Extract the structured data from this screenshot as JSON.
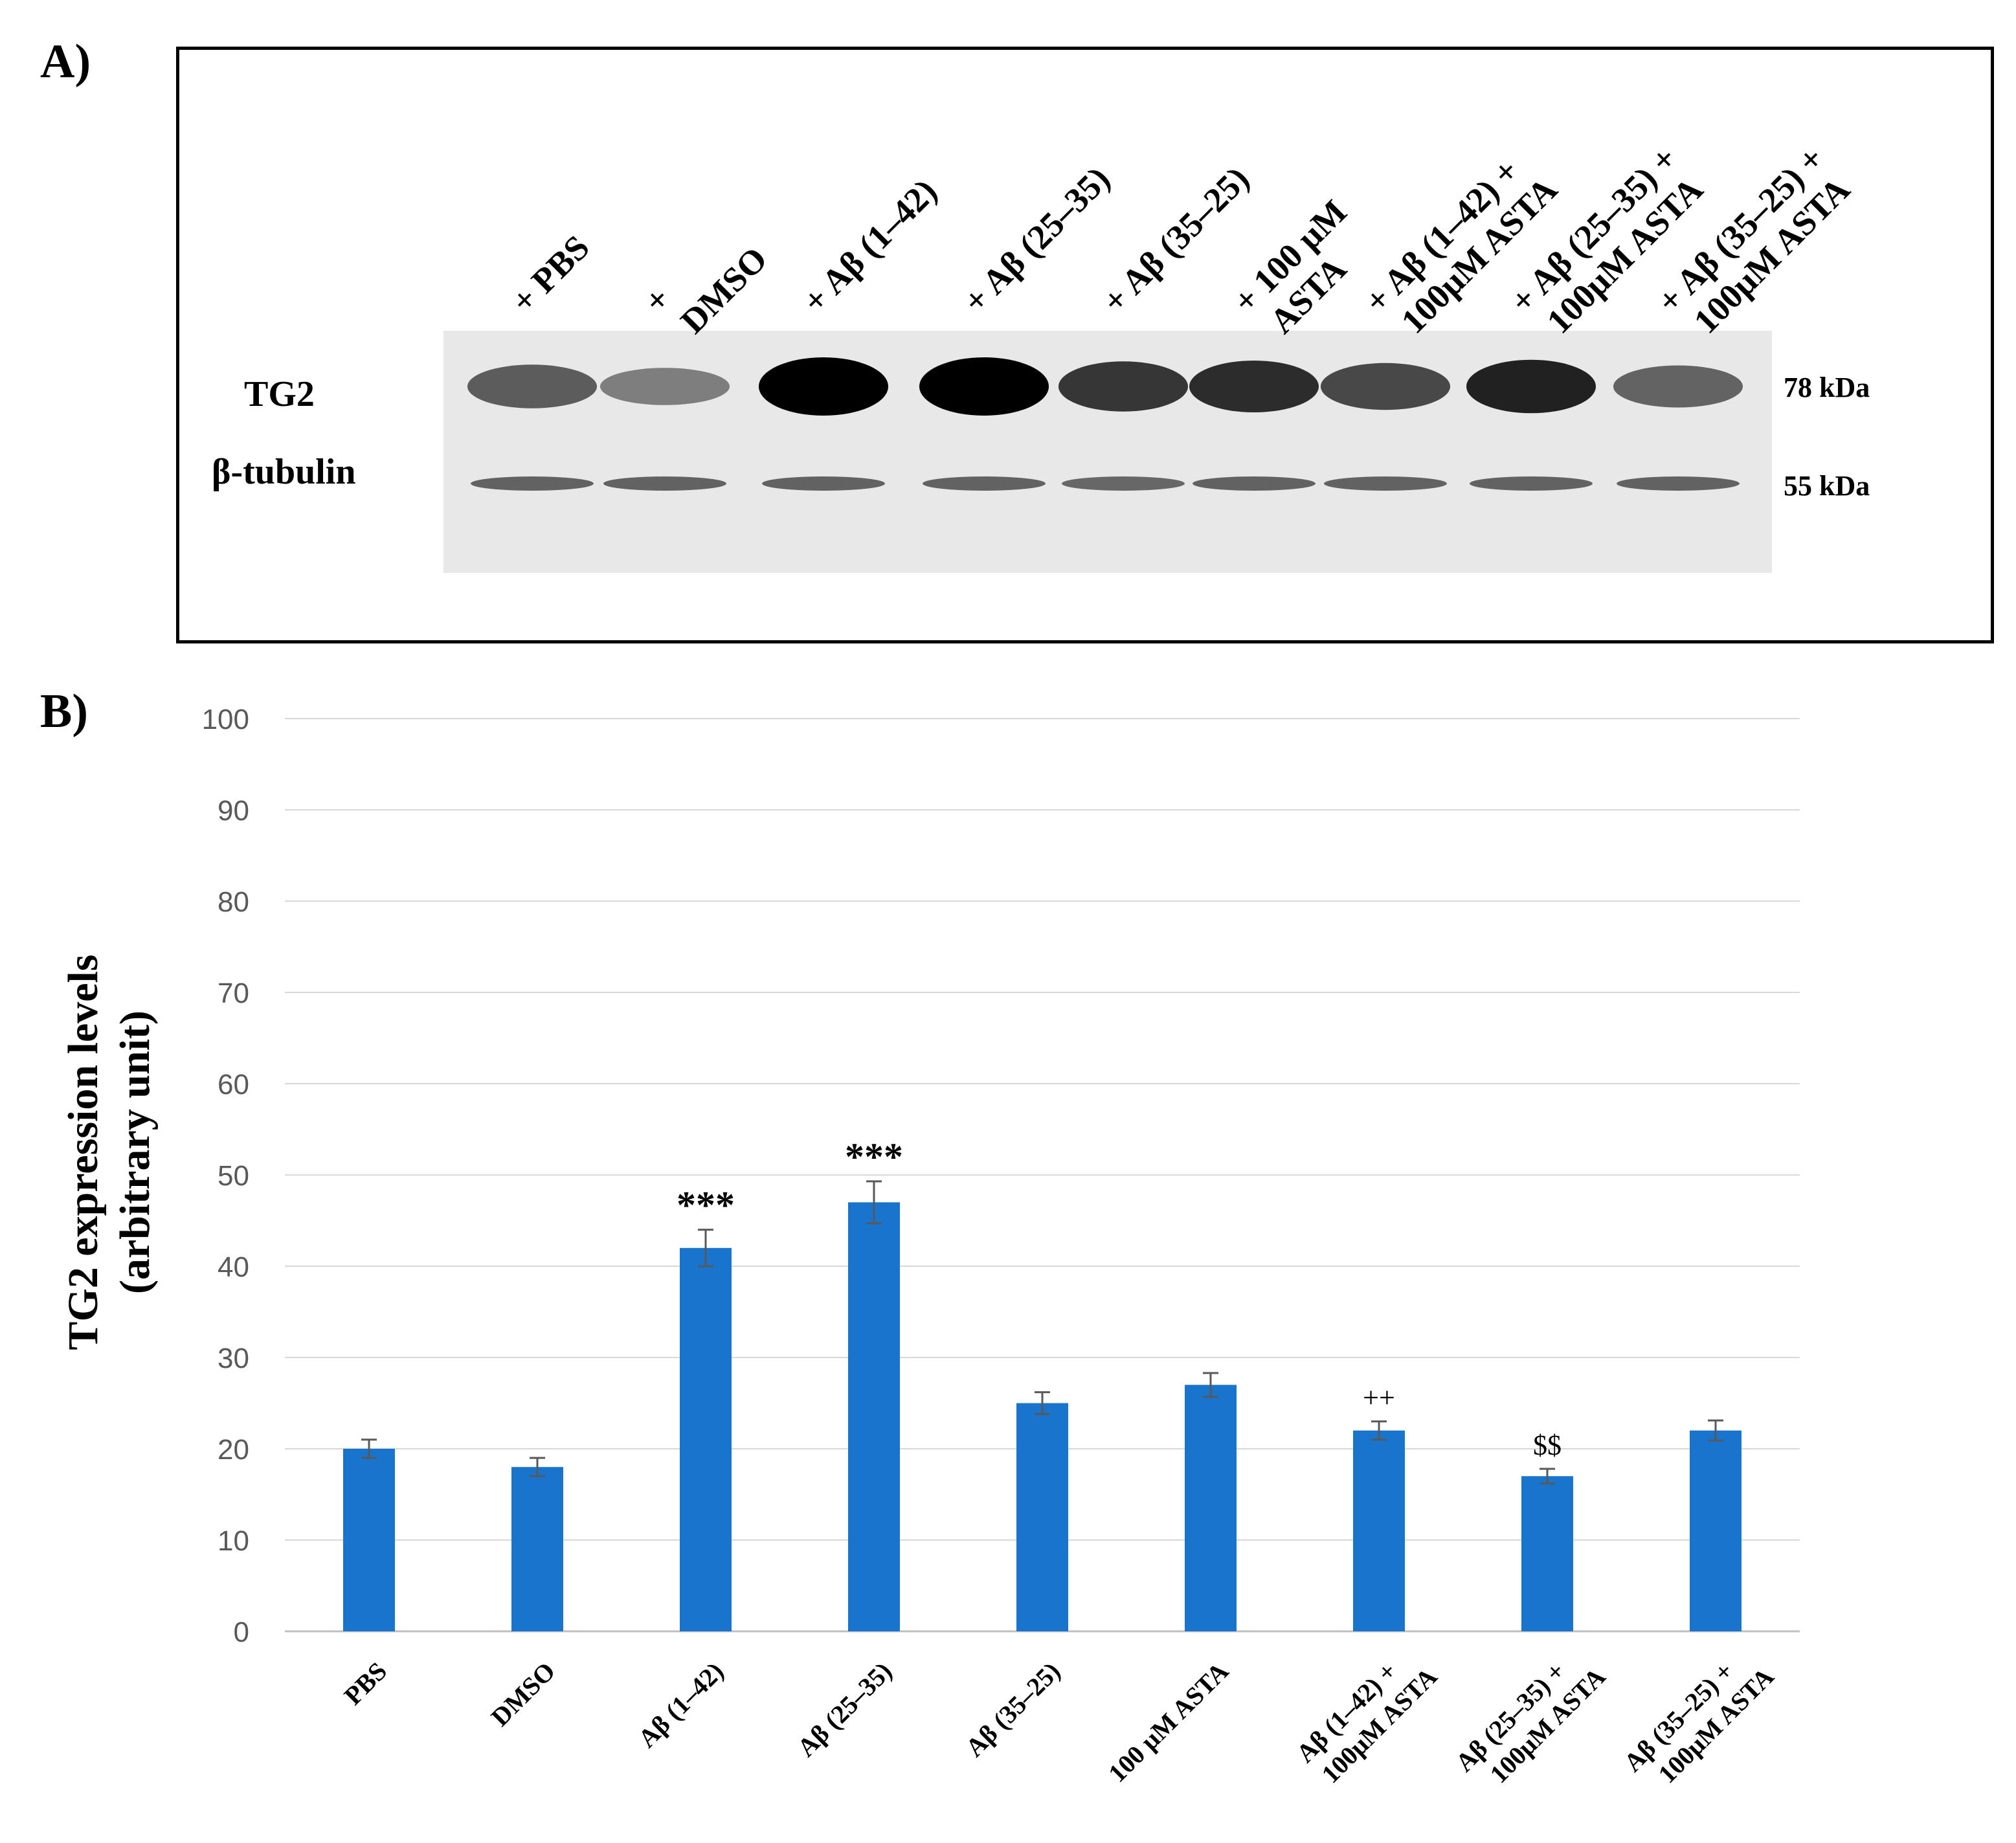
{
  "panel_a": {
    "label": "A)",
    "lane_labels": [
      {
        "lines": [
          "+ PBS"
        ]
      },
      {
        "lines": [
          "+",
          "DMSO"
        ]
      },
      {
        "lines": [
          "+ Aβ (1–42)"
        ]
      },
      {
        "lines": [
          "+ Aβ (25–35)"
        ]
      },
      {
        "lines": [
          "+ Aβ (35–25)"
        ]
      },
      {
        "lines": [
          "+ 100 µM",
          "ASTA"
        ]
      },
      {
        "lines": [
          "+ Aβ (1–42) +",
          "100µM ASTA"
        ]
      },
      {
        "lines": [
          "+ Aβ (25–35) +",
          "100µM ASTA"
        ]
      },
      {
        "lines": [
          "+ Aβ (35–25) +",
          "100µM ASTA"
        ]
      }
    ],
    "row_labels": {
      "tg2": "TG2",
      "tubulin": "β-tubulin"
    },
    "size_markers": {
      "tg2": "78 kDa",
      "tubulin": "55 kDa"
    },
    "band_intensity": {
      "tg2": [
        0.55,
        0.35,
        1.0,
        1.0,
        0.75,
        0.8,
        0.65,
        0.85,
        0.5
      ],
      "tubulin": [
        0.55,
        0.55,
        0.55,
        0.55,
        0.5,
        0.55,
        0.55,
        0.55,
        0.55
      ]
    }
  },
  "panel_b": {
    "label": "B)"
  },
  "chart_data": {
    "type": "bar",
    "title": "",
    "xlabel": "",
    "ylabel": [
      "TG2 expression levels",
      "(arbitrary unit)"
    ],
    "ylim": [
      0,
      100
    ],
    "yticks": [
      0,
      10,
      20,
      30,
      40,
      50,
      60,
      70,
      80,
      90,
      100
    ],
    "grid": true,
    "bar_color": "#1874CD",
    "categories": [
      {
        "lines": [
          "PBS"
        ]
      },
      {
        "lines": [
          "DMSO"
        ]
      },
      {
        "lines": [
          "Aβ (1–42)"
        ]
      },
      {
        "lines": [
          "Aβ (25–35)"
        ]
      },
      {
        "lines": [
          "Aβ (35–25)"
        ]
      },
      {
        "lines": [
          "100 µM ASTA"
        ]
      },
      {
        "lines": [
          "Aβ (1–42) +",
          "100µM ASTA"
        ]
      },
      {
        "lines": [
          "Aβ (25–35) +",
          "100µM ASTA"
        ]
      },
      {
        "lines": [
          "Aβ (35–25) +",
          "100µM ASTA"
        ]
      }
    ],
    "values": [
      20,
      18,
      42,
      47,
      25,
      27,
      22,
      17,
      22
    ],
    "errors": [
      1.0,
      1.0,
      2.0,
      2.3,
      1.2,
      1.3,
      1.0,
      0.8,
      1.1
    ],
    "annotations": [
      "",
      "",
      "***",
      "***",
      "",
      "",
      "++",
      "$$",
      ""
    ]
  }
}
